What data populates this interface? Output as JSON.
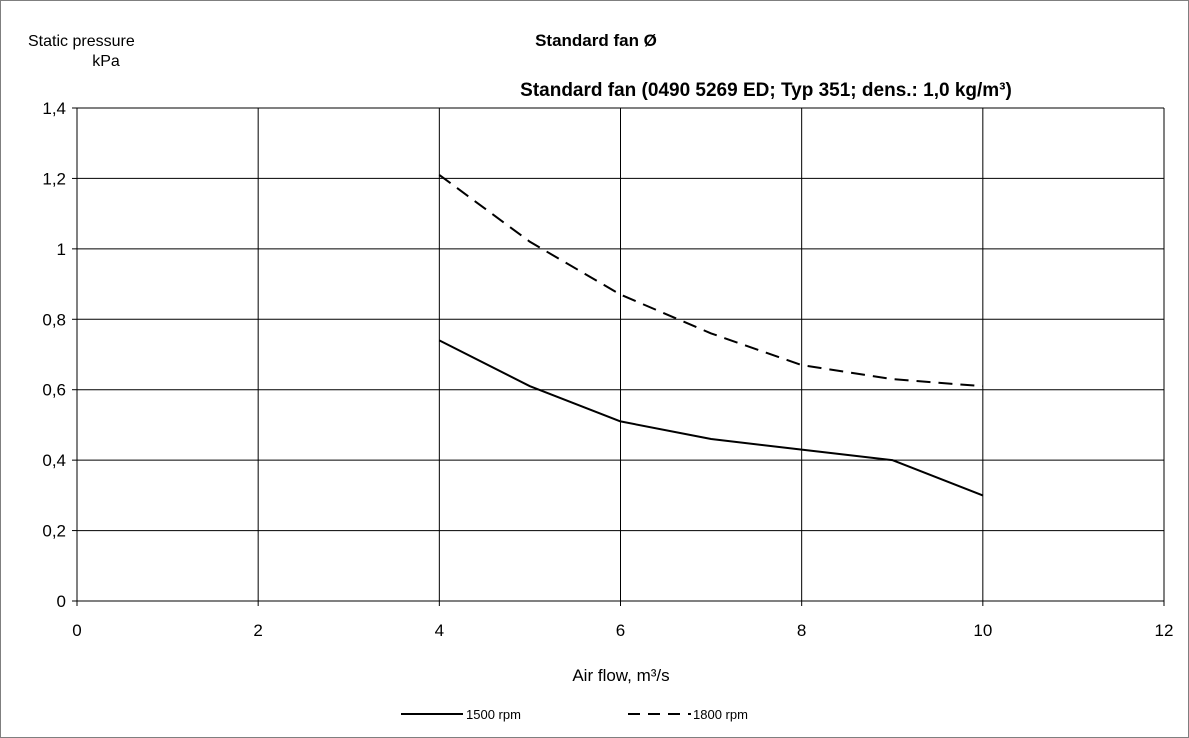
{
  "chart_data": {
    "type": "line",
    "title": "Standard fan Ø",
    "subtitle": "Standard fan  (0490 5269 ED; Typ 351; dens.: 1,0 kg/m³)",
    "xlabel": "Air flow, m³/s",
    "ylabel_line1": "Static pressure",
    "ylabel_line2": "kPa",
    "xlim": [
      0,
      12
    ],
    "ylim": [
      0,
      1.4
    ],
    "x_ticks": [
      0,
      2,
      4,
      6,
      8,
      10,
      12
    ],
    "y_ticks": [
      0,
      0.2,
      0.4,
      0.6,
      0.8,
      1,
      1.2,
      1.4
    ],
    "x_tick_labels": [
      "0",
      "2",
      "4",
      "6",
      "8",
      "10",
      "12"
    ],
    "y_tick_labels": [
      "0",
      "0,2",
      "0,4",
      "0,6",
      "0,8",
      "1",
      "1,2",
      "1,4"
    ],
    "grid": true,
    "legend_position": "bottom",
    "series": [
      {
        "name": "1500 rpm",
        "style": "solid",
        "color": "#000000",
        "x": [
          4,
          5,
          6,
          7,
          8,
          9,
          10
        ],
        "y": [
          0.74,
          0.61,
          0.51,
          0.46,
          0.43,
          0.4,
          0.3
        ]
      },
      {
        "name": "1800 rpm",
        "style": "dashed",
        "color": "#000000",
        "x": [
          4,
          5,
          6,
          7,
          8,
          9,
          10
        ],
        "y": [
          1.21,
          1.02,
          0.87,
          0.76,
          0.67,
          0.63,
          0.61
        ]
      }
    ]
  }
}
